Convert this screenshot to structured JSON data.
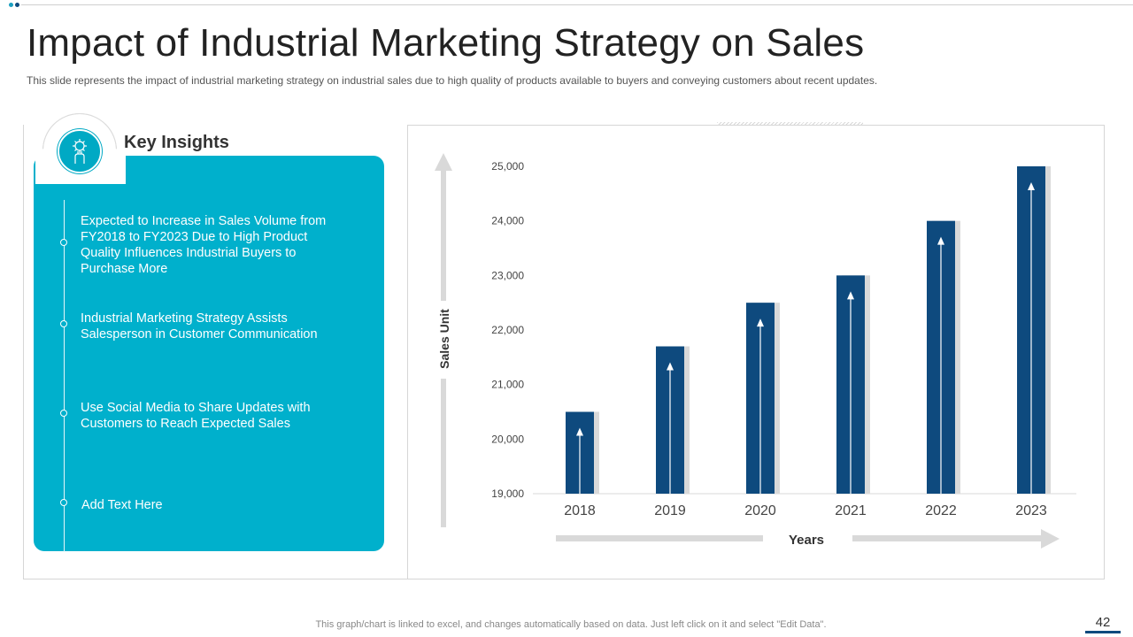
{
  "slide": {
    "title": "Impact of Industrial Marketing Strategy on Sales",
    "subtitle": "This slide represents the impact of industrial marketing strategy on industrial sales due to high quality of products available  to buyers and conveying  customers about recent updates.",
    "footer_note": "This graph/chart is linked to excel,  and changes automatically based on data. Just left click on it and select \"Edit Data\".",
    "page_number": "42"
  },
  "insights": {
    "heading": "Key Insights",
    "icon": "gear-hand-icon",
    "items": [
      "Expected to Increase in Sales Volume from FY2018 to FY2023 Due to High Product Quality Influences Industrial Buyers to Purchase More",
      "Industrial Marketing  Strategy Assists Salesperson in Customer Communication",
      "Use Social Media to Share Updates with Customers to Reach Expected Sales",
      "Add Text Here"
    ]
  },
  "colors": {
    "accent": "#00b0cc",
    "bar": "#0e4a7e",
    "bar_shadow": "#d9d9d9",
    "arrow": "#d9d9d9"
  },
  "chart_data": {
    "type": "bar",
    "categories": [
      "2018",
      "2019",
      "2020",
      "2021",
      "2022",
      "2023"
    ],
    "values": [
      20500,
      21700,
      22500,
      23000,
      24000,
      25000
    ],
    "ylim": [
      19000,
      25000
    ],
    "yticks": [
      19000,
      20000,
      21000,
      22000,
      23000,
      24000,
      25000
    ],
    "ytick_labels": [
      "19,000",
      "20,000",
      "21,000",
      "22,000",
      "23,000",
      "24,000",
      "25,000"
    ],
    "xlabel": "Years",
    "ylabel": "Sales Unit",
    "title": ""
  }
}
